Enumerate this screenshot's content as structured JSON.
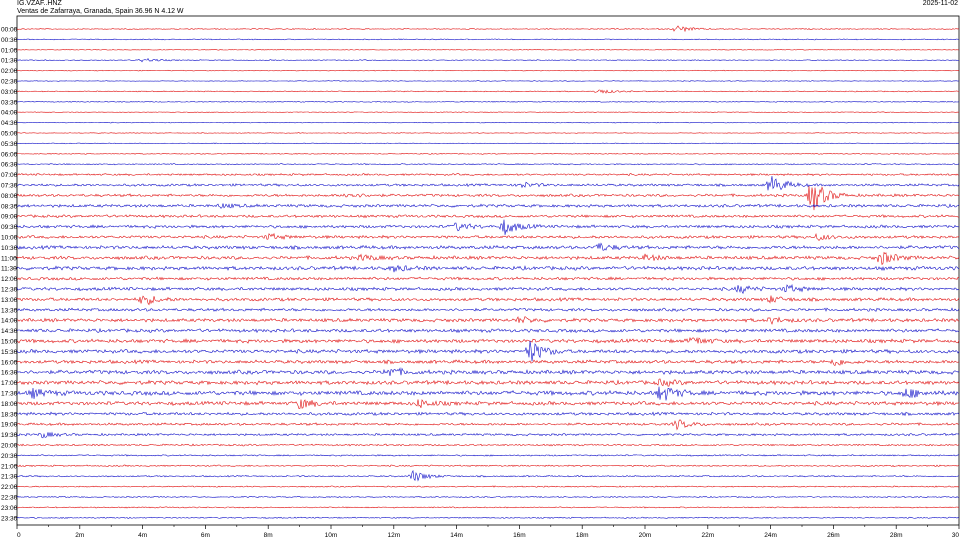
{
  "header": {
    "station": "IG.VZAF..HNZ",
    "location": "Ventas de Zafarraya, Granada, Spain  36.96 N 4.12 W",
    "date": "2025-11-02"
  },
  "colors": {
    "odd": "#e01010",
    "even": "#1010c8",
    "axis": "#000000"
  },
  "chart_data": {
    "type": "line",
    "title": "IG.VZAF..HNZ",
    "subtitle": "Ventas de Zafarraya, Granada, Spain  36.96 N 4.12 W",
    "xlabel": "",
    "ylabel": "",
    "xlim": [
      0,
      30
    ],
    "x_ticks": [
      "0",
      "2m",
      "4m",
      "6m",
      "8m",
      "10m",
      "12m",
      "14m",
      "16m",
      "18m",
      "20m",
      "22m",
      "24m",
      "26m",
      "28m",
      "30"
    ],
    "rows": [
      "00:00",
      "00:30",
      "01:00",
      "01:30",
      "02:00",
      "02:30",
      "03:00",
      "03:30",
      "04:00",
      "04:30",
      "05:00",
      "05:30",
      "06:00",
      "06:30",
      "07:00",
      "07:30",
      "08:00",
      "08:30",
      "09:00",
      "09:30",
      "10:00",
      "10:30",
      "11:00",
      "11:30",
      "12:00",
      "12:30",
      "13:00",
      "13:30",
      "14:00",
      "14:30",
      "15:00",
      "15:30",
      "16:00",
      "16:30",
      "17:00",
      "17:30",
      "18:00",
      "18:30",
      "19:00",
      "19:30",
      "20:00",
      "20:30",
      "21:00",
      "21:30",
      "22:00",
      "22:30",
      "23:00",
      "23:30"
    ],
    "noise_level": [
      0.4,
      0.4,
      0.3,
      0.4,
      0.3,
      0.3,
      0.4,
      0.4,
      0.3,
      0.3,
      0.3,
      0.3,
      0.4,
      0.5,
      0.8,
      1.0,
      1.1,
      1.2,
      1.1,
      1.2,
      1.2,
      1.4,
      1.4,
      1.5,
      1.2,
      1.3,
      1.3,
      1.2,
      1.4,
      1.4,
      1.5,
      1.5,
      1.4,
      1.6,
      1.6,
      1.8,
      1.5,
      1.2,
      1.0,
      0.9,
      0.7,
      0.6,
      0.6,
      0.6,
      0.5,
      0.5,
      0.5,
      0.5
    ],
    "events": [
      {
        "row": 0,
        "minute": 21.0,
        "amp": 4
      },
      {
        "row": 3,
        "minute": 4.0,
        "amp": 2
      },
      {
        "row": 6,
        "minute": 18.5,
        "amp": 3
      },
      {
        "row": 15,
        "minute": 16.0,
        "amp": 3
      },
      {
        "row": 15,
        "minute": 24.0,
        "amp": 10
      },
      {
        "row": 16,
        "minute": 10.5,
        "amp": 3
      },
      {
        "row": 16,
        "minute": 25.3,
        "amp": 18
      },
      {
        "row": 17,
        "minute": 6.5,
        "amp": 2
      },
      {
        "row": 19,
        "minute": 15.5,
        "amp": 8
      },
      {
        "row": 19,
        "minute": 14.0,
        "amp": 4
      },
      {
        "row": 20,
        "minute": 8.0,
        "amp": 3
      },
      {
        "row": 20,
        "minute": 25.5,
        "amp": 3
      },
      {
        "row": 21,
        "minute": 18.5,
        "amp": 4
      },
      {
        "row": 22,
        "minute": 11.0,
        "amp": 3
      },
      {
        "row": 22,
        "minute": 20.0,
        "amp": 3
      },
      {
        "row": 22,
        "minute": 27.5,
        "amp": 7
      },
      {
        "row": 23,
        "minute": 12.0,
        "amp": 3
      },
      {
        "row": 25,
        "minute": 23.0,
        "amp": 4
      },
      {
        "row": 25,
        "minute": 24.5,
        "amp": 4
      },
      {
        "row": 26,
        "minute": 4.0,
        "amp": 6
      },
      {
        "row": 26,
        "minute": 24.0,
        "amp": 3
      },
      {
        "row": 28,
        "minute": 16.0,
        "amp": 3
      },
      {
        "row": 28,
        "minute": 24.0,
        "amp": 3
      },
      {
        "row": 30,
        "minute": 21.5,
        "amp": 4
      },
      {
        "row": 31,
        "minute": 16.3,
        "amp": 12
      },
      {
        "row": 32,
        "minute": 26.0,
        "amp": 4
      },
      {
        "row": 33,
        "minute": 11.8,
        "amp": 5
      },
      {
        "row": 34,
        "minute": 20.5,
        "amp": 3
      },
      {
        "row": 35,
        "minute": 20.5,
        "amp": 9
      },
      {
        "row": 35,
        "minute": 28.3,
        "amp": 5
      },
      {
        "row": 35,
        "minute": 0.5,
        "amp": 4
      },
      {
        "row": 36,
        "minute": 9.0,
        "amp": 5
      },
      {
        "row": 36,
        "minute": 12.8,
        "amp": 4
      },
      {
        "row": 38,
        "minute": 21.0,
        "amp": 5
      },
      {
        "row": 39,
        "minute": 0.8,
        "amp": 3
      },
      {
        "row": 43,
        "minute": 12.6,
        "amp": 6
      }
    ]
  }
}
